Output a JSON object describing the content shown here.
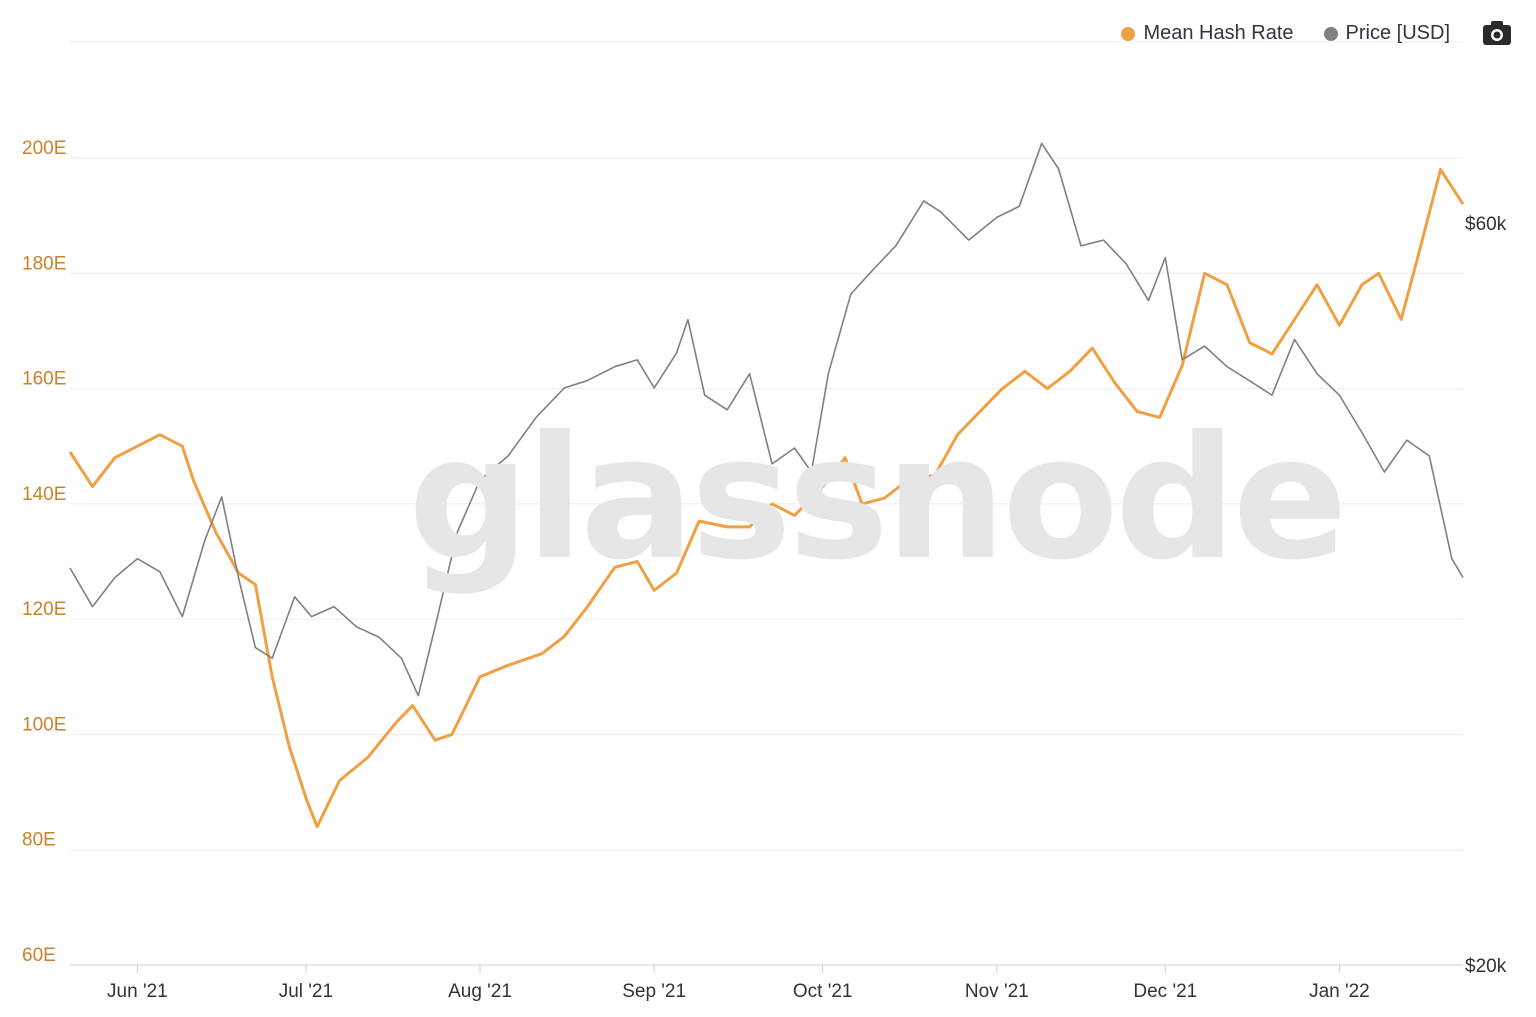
{
  "legend": {
    "hash_label": "Mean Hash Rate",
    "price_label": "Price [USD]"
  },
  "watermark": "glassnode",
  "colors": {
    "hash": "#f0a044",
    "price": "#808080",
    "left_axis": "#c8832a",
    "grid": "#ececec"
  },
  "chart_data": {
    "type": "line",
    "x": {
      "start": "2021-05-20",
      "end": "2022-01-23",
      "tick_labels": [
        "Jun '21",
        "Jul '21",
        "Aug '21",
        "Sep '21",
        "Oct '21",
        "Nov '21",
        "Dec '21",
        "Jan '22"
      ],
      "tick_dates": [
        "2021-06-01",
        "2021-07-01",
        "2021-08-01",
        "2021-09-01",
        "2021-10-01",
        "2021-11-01",
        "2021-12-01",
        "2022-01-01"
      ]
    },
    "y_left": {
      "label": "",
      "range": [
        60,
        200
      ],
      "tick_labels": [
        "60E",
        "80E",
        "100E",
        "120E",
        "140E",
        "160E",
        "180E",
        "200E"
      ],
      "tick_values": [
        60,
        80,
        100,
        120,
        140,
        160,
        180,
        200
      ]
    },
    "y_right": {
      "label": "",
      "scale": "log",
      "range_usd": [
        20000,
        60000
      ],
      "tick_labels": [
        "$20k",
        "$60k"
      ],
      "tick_values": [
        20000,
        60000
      ]
    },
    "grid": true,
    "legend_position": "top-right",
    "series": [
      {
        "name": "Mean Hash Rate",
        "axis": "left",
        "unit": "EH/s",
        "points": [
          [
            "2021-05-20",
            149
          ],
          [
            "2021-05-24",
            143
          ],
          [
            "2021-05-28",
            148
          ],
          [
            "2021-06-01",
            150
          ],
          [
            "2021-06-05",
            152
          ],
          [
            "2021-06-09",
            150
          ],
          [
            "2021-06-11",
            144
          ],
          [
            "2021-06-15",
            135
          ],
          [
            "2021-06-19",
            128
          ],
          [
            "2021-06-22",
            126
          ],
          [
            "2021-06-25",
            110
          ],
          [
            "2021-06-28",
            98
          ],
          [
            "2021-07-01",
            89
          ],
          [
            "2021-07-03",
            84
          ],
          [
            "2021-07-07",
            92
          ],
          [
            "2021-07-12",
            96
          ],
          [
            "2021-07-17",
            102
          ],
          [
            "2021-07-20",
            105
          ],
          [
            "2021-07-24",
            99
          ],
          [
            "2021-07-27",
            100
          ],
          [
            "2021-08-01",
            110
          ],
          [
            "2021-08-06",
            112
          ],
          [
            "2021-08-12",
            114
          ],
          [
            "2021-08-16",
            117
          ],
          [
            "2021-08-20",
            122
          ],
          [
            "2021-08-25",
            129
          ],
          [
            "2021-08-29",
            130
          ],
          [
            "2021-09-01",
            125
          ],
          [
            "2021-09-05",
            128
          ],
          [
            "2021-09-09",
            137
          ],
          [
            "2021-09-14",
            136
          ],
          [
            "2021-09-18",
            136
          ],
          [
            "2021-09-22",
            140
          ],
          [
            "2021-09-26",
            138
          ],
          [
            "2021-10-01",
            143
          ],
          [
            "2021-10-05",
            148
          ],
          [
            "2021-10-08",
            140
          ],
          [
            "2021-10-12",
            141
          ],
          [
            "2021-10-16",
            144
          ],
          [
            "2021-10-21",
            145
          ],
          [
            "2021-10-25",
            152
          ],
          [
            "2021-10-29",
            156
          ],
          [
            "2021-11-02",
            160
          ],
          [
            "2021-11-06",
            163
          ],
          [
            "2021-11-10",
            160
          ],
          [
            "2021-11-14",
            163
          ],
          [
            "2021-11-18",
            167
          ],
          [
            "2021-11-22",
            161
          ],
          [
            "2021-11-26",
            156
          ],
          [
            "2021-11-30",
            155
          ],
          [
            "2021-12-04",
            164
          ],
          [
            "2021-12-08",
            180
          ],
          [
            "2021-12-12",
            178
          ],
          [
            "2021-12-16",
            168
          ],
          [
            "2021-12-20",
            166
          ],
          [
            "2021-12-24",
            172
          ],
          [
            "2021-12-28",
            178
          ],
          [
            "2022-01-01",
            171
          ],
          [
            "2022-01-05",
            178
          ],
          [
            "2022-01-08",
            180
          ],
          [
            "2022-01-12",
            172
          ],
          [
            "2022-01-15",
            183
          ],
          [
            "2022-01-19",
            198
          ],
          [
            "2022-01-23",
            192
          ]
        ]
      },
      {
        "name": "Price [USD]",
        "axis": "right",
        "unit": "USD",
        "points": [
          [
            "2021-05-20",
            36000
          ],
          [
            "2021-05-24",
            34000
          ],
          [
            "2021-05-28",
            35500
          ],
          [
            "2021-06-01",
            36500
          ],
          [
            "2021-06-05",
            35800
          ],
          [
            "2021-06-09",
            33500
          ],
          [
            "2021-06-13",
            37500
          ],
          [
            "2021-06-16",
            40000
          ],
          [
            "2021-06-19",
            35500
          ],
          [
            "2021-06-22",
            32000
          ],
          [
            "2021-06-25",
            31500
          ],
          [
            "2021-06-29",
            34500
          ],
          [
            "2021-07-02",
            33500
          ],
          [
            "2021-07-06",
            34000
          ],
          [
            "2021-07-10",
            33000
          ],
          [
            "2021-07-14",
            32500
          ],
          [
            "2021-07-18",
            31500
          ],
          [
            "2021-07-21",
            29800
          ],
          [
            "2021-07-24",
            33000
          ],
          [
            "2021-07-28",
            38000
          ],
          [
            "2021-08-01",
            41000
          ],
          [
            "2021-08-06",
            42500
          ],
          [
            "2021-08-11",
            45000
          ],
          [
            "2021-08-16",
            47000
          ],
          [
            "2021-08-20",
            47500
          ],
          [
            "2021-08-25",
            48500
          ],
          [
            "2021-08-29",
            49000
          ],
          [
            "2021-09-01",
            47000
          ],
          [
            "2021-09-05",
            49500
          ],
          [
            "2021-09-07",
            52000
          ],
          [
            "2021-09-10",
            46500
          ],
          [
            "2021-09-14",
            45500
          ],
          [
            "2021-09-18",
            48000
          ],
          [
            "2021-09-22",
            42000
          ],
          [
            "2021-09-26",
            43000
          ],
          [
            "2021-09-29",
            41500
          ],
          [
            "2021-10-02",
            48000
          ],
          [
            "2021-10-06",
            54000
          ],
          [
            "2021-10-10",
            56000
          ],
          [
            "2021-10-14",
            58000
          ],
          [
            "2021-10-19",
            62000
          ],
          [
            "2021-10-22",
            61000
          ],
          [
            "2021-10-27",
            58500
          ],
          [
            "2021-11-01",
            60500
          ],
          [
            "2021-11-05",
            61500
          ],
          [
            "2021-11-09",
            67500
          ],
          [
            "2021-11-12",
            65000
          ],
          [
            "2021-11-16",
            58000
          ],
          [
            "2021-11-20",
            58500
          ],
          [
            "2021-11-24",
            56500
          ],
          [
            "2021-11-28",
            53500
          ],
          [
            "2021-12-01",
            57000
          ],
          [
            "2021-12-04",
            49000
          ],
          [
            "2021-12-08",
            50000
          ],
          [
            "2021-12-12",
            48500
          ],
          [
            "2021-12-16",
            47500
          ],
          [
            "2021-12-20",
            46500
          ],
          [
            "2021-12-24",
            50500
          ],
          [
            "2021-12-28",
            48000
          ],
          [
            "2022-01-01",
            46500
          ],
          [
            "2022-01-05",
            44000
          ],
          [
            "2022-01-09",
            41500
          ],
          [
            "2022-01-13",
            43500
          ],
          [
            "2022-01-17",
            42500
          ],
          [
            "2022-01-21",
            36500
          ],
          [
            "2022-01-23",
            35500
          ]
        ]
      }
    ]
  }
}
